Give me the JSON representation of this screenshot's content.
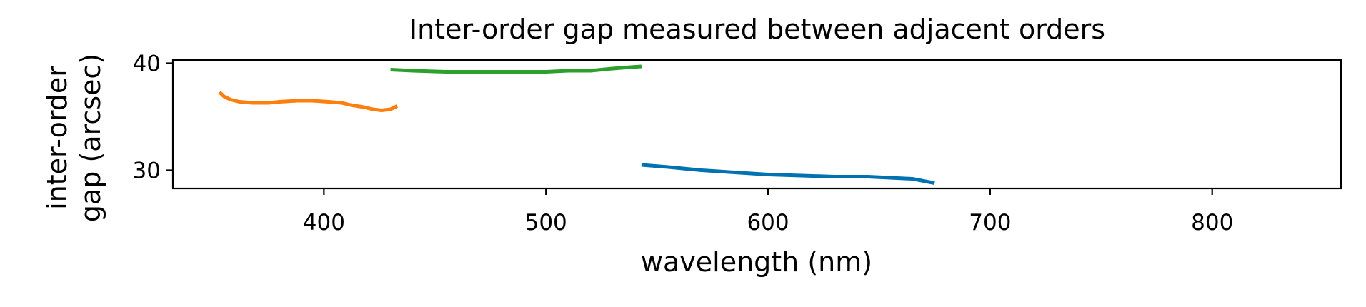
{
  "chart_data": {
    "type": "line",
    "title": "Inter-order gap measured between adjacent orders",
    "xlabel": "wavelength (nm)",
    "ylabel_lines": [
      "inter-order",
      "gap (arcsec)"
    ],
    "xlim": [
      332,
      858
    ],
    "ylim": [
      28.3,
      40.3
    ],
    "xticks": [
      400,
      500,
      600,
      700,
      800
    ],
    "yticks": [
      30,
      40
    ],
    "grid": false,
    "legend": "none",
    "series": [
      {
        "color": "#ff7f0e",
        "x": [
          353,
          355,
          358,
          362,
          368,
          375,
          380,
          388,
          395,
          402,
          408,
          412,
          418,
          422,
          426,
          430,
          433
        ],
        "y": [
          37.3,
          36.9,
          36.6,
          36.4,
          36.3,
          36.3,
          36.4,
          36.5,
          36.5,
          36.4,
          36.3,
          36.1,
          35.9,
          35.7,
          35.6,
          35.7,
          36.0
        ]
      },
      {
        "color": "#2ca02c",
        "x": [
          430,
          440,
          455,
          470,
          485,
          500,
          510,
          520,
          530,
          536,
          543
        ],
        "y": [
          39.4,
          39.3,
          39.2,
          39.2,
          39.2,
          39.2,
          39.3,
          39.3,
          39.5,
          39.6,
          39.7
        ]
      },
      {
        "color": "#0072b2",
        "x": [
          543,
          555,
          570,
          585,
          600,
          615,
          630,
          645,
          655,
          665,
          670,
          675
        ],
        "y": [
          30.5,
          30.3,
          30.0,
          29.8,
          29.6,
          29.5,
          29.4,
          29.4,
          29.3,
          29.2,
          29.0,
          28.8
        ]
      }
    ]
  }
}
